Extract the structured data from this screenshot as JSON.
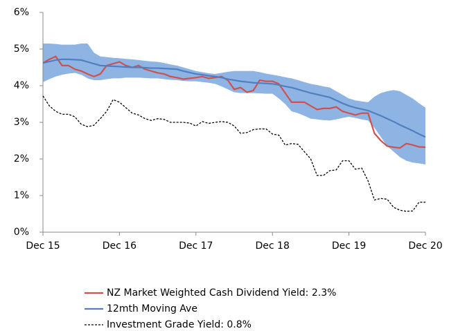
{
  "chart_data": {
    "type": "line",
    "categories": [
      "Dec 15",
      null,
      null,
      null,
      null,
      null,
      null,
      null,
      null,
      null,
      null,
      null,
      "Dec 16",
      null,
      null,
      null,
      null,
      null,
      null,
      null,
      null,
      null,
      null,
      null,
      "Dec 17",
      null,
      null,
      null,
      null,
      null,
      null,
      null,
      null,
      null,
      null,
      null,
      "Dec 18",
      null,
      null,
      null,
      null,
      null,
      null,
      null,
      null,
      null,
      null,
      null,
      "Dec 19",
      null,
      null,
      null,
      null,
      null,
      null,
      null,
      null,
      null,
      null,
      null,
      "Dec 20"
    ],
    "ylim": [
      0,
      6
    ],
    "yticks": [
      {
        "value": 0,
        "label": "0%"
      },
      {
        "value": 1,
        "label": "1%"
      },
      {
        "value": 2,
        "label": "2%"
      },
      {
        "value": 3,
        "label": "3%"
      },
      {
        "value": 4,
        "label": "4%"
      },
      {
        "value": 5,
        "label": "5%"
      },
      {
        "value": 6,
        "label": "6%"
      }
    ],
    "band": {
      "color": "#8eb4e3",
      "upper": [
        5.15,
        5.15,
        5.14,
        5.12,
        5.12,
        5.12,
        5.15,
        5.15,
        4.9,
        4.8,
        4.78,
        4.76,
        4.75,
        4.73,
        4.72,
        4.7,
        4.68,
        4.66,
        4.65,
        4.62,
        4.58,
        4.55,
        4.5,
        4.45,
        4.4,
        4.37,
        4.34,
        4.32,
        4.35,
        4.38,
        4.4,
        4.4,
        4.4,
        4.4,
        4.37,
        4.33,
        4.3,
        4.27,
        4.23,
        4.2,
        4.15,
        4.1,
        4.05,
        4.02,
        3.98,
        3.95,
        3.85,
        3.75,
        3.65,
        3.6,
        3.57,
        3.55,
        3.7,
        3.8,
        3.85,
        3.88,
        3.85,
        3.75,
        3.65,
        3.52,
        3.4
      ],
      "lower": [
        4.1,
        4.18,
        4.25,
        4.3,
        4.33,
        4.35,
        4.3,
        4.2,
        4.15,
        4.15,
        4.18,
        4.2,
        4.2,
        4.22,
        4.22,
        4.22,
        4.21,
        4.2,
        4.2,
        4.18,
        4.16,
        4.15,
        4.13,
        4.12,
        4.12,
        4.1,
        4.08,
        4.05,
        3.98,
        3.9,
        3.82,
        3.8,
        3.8,
        3.8,
        3.79,
        3.78,
        3.78,
        3.65,
        3.5,
        3.3,
        3.25,
        3.18,
        3.1,
        3.08,
        3.06,
        3.05,
        3.08,
        3.12,
        3.15,
        3.12,
        3.08,
        3.05,
        2.85,
        2.6,
        2.35,
        2.2,
        2.05,
        1.95,
        1.9,
        1.88,
        1.85
      ]
    },
    "series": [
      {
        "name": "NZ Market Weighted Cash Dividend Yield: 2.3%",
        "color": "#d0504d",
        "dash": false,
        "values": [
          4.62,
          4.72,
          4.8,
          4.55,
          4.55,
          4.45,
          4.4,
          4.32,
          4.25,
          4.32,
          4.55,
          4.6,
          4.65,
          4.55,
          4.5,
          4.55,
          4.45,
          4.4,
          4.35,
          4.32,
          4.25,
          4.22,
          4.18,
          4.2,
          4.22,
          4.25,
          4.2,
          4.22,
          4.25,
          4.15,
          3.9,
          3.95,
          3.82,
          3.87,
          4.15,
          4.12,
          4.12,
          4.05,
          3.8,
          3.55,
          3.55,
          3.55,
          3.45,
          3.35,
          3.38,
          3.38,
          3.42,
          3.3,
          3.25,
          3.2,
          3.25,
          3.25,
          2.7,
          2.5,
          2.35,
          2.32,
          2.3,
          2.42,
          2.38,
          2.33,
          2.32
        ]
      },
      {
        "name": "12mth Moving Ave",
        "color": "#4f7fc0",
        "dash": false,
        "values": [
          4.62,
          4.66,
          4.7,
          4.72,
          4.72,
          4.71,
          4.7,
          4.65,
          4.6,
          4.55,
          4.54,
          4.53,
          4.52,
          4.51,
          4.5,
          4.5,
          4.49,
          4.48,
          4.48,
          4.47,
          4.46,
          4.45,
          4.4,
          4.36,
          4.32,
          4.3,
          4.27,
          4.25,
          4.22,
          4.18,
          4.15,
          4.12,
          4.1,
          4.08,
          4.07,
          4.06,
          4.05,
          4.02,
          3.98,
          3.95,
          3.9,
          3.85,
          3.8,
          3.76,
          3.72,
          3.68,
          3.6,
          3.52,
          3.45,
          3.4,
          3.36,
          3.32,
          3.25,
          3.18,
          3.1,
          3.02,
          2.93,
          2.85,
          2.77,
          2.68,
          2.6
        ]
      },
      {
        "name": "Investment Grade Yield: 0.8%",
        "color": "#000000",
        "dash": true,
        "values": [
          3.72,
          3.45,
          3.3,
          3.22,
          3.22,
          3.15,
          2.95,
          2.88,
          2.92,
          3.1,
          3.3,
          3.62,
          3.55,
          3.4,
          3.25,
          3.2,
          3.1,
          3.05,
          3.1,
          3.08,
          3.0,
          3.0,
          3.0,
          2.98,
          2.9,
          3.02,
          2.97,
          3.0,
          3.02,
          3.0,
          2.9,
          2.7,
          2.72,
          2.8,
          2.82,
          2.82,
          2.68,
          2.65,
          2.38,
          2.42,
          2.4,
          2.2,
          2.0,
          1.55,
          1.55,
          1.68,
          1.7,
          1.95,
          1.95,
          1.72,
          1.75,
          1.4,
          0.88,
          0.92,
          0.9,
          0.68,
          0.6,
          0.57,
          0.58,
          0.82,
          0.82
        ]
      }
    ]
  }
}
